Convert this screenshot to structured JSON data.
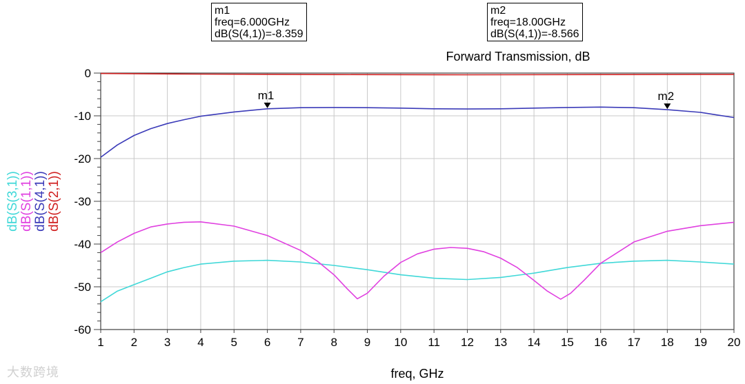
{
  "chart_data": {
    "type": "line",
    "title": "Forward Transmission, dB",
    "xlabel": "freq, GHz",
    "xlim": [
      1,
      20
    ],
    "ylim": [
      -60,
      0
    ],
    "xticks": [
      1,
      2,
      3,
      4,
      5,
      6,
      7,
      8,
      9,
      10,
      11,
      12,
      13,
      14,
      15,
      16,
      17,
      18,
      19,
      20
    ],
    "yticks": [
      0,
      -10,
      -20,
      -30,
      -40,
      -50,
      -60
    ],
    "grid": true,
    "series": [
      {
        "name": "dB(S(3,1))",
        "color": "#40d8d8",
        "x": [
          1,
          1.5,
          2,
          2.5,
          3,
          3.5,
          4,
          5,
          6,
          7,
          8,
          9,
          10,
          11,
          12,
          13,
          14,
          15,
          16,
          17,
          18,
          19,
          20
        ],
        "y": [
          -53.5,
          -51,
          -49.5,
          -48,
          -46.5,
          -45.5,
          -44.7,
          -44,
          -43.8,
          -44.2,
          -45,
          -46,
          -47.2,
          -48,
          -48.3,
          -47.8,
          -46.8,
          -45.5,
          -44.5,
          -44,
          -43.8,
          -44.2,
          -44.7
        ]
      },
      {
        "name": "dB(S(1,1))",
        "color": "#e040e0",
        "x": [
          1,
          1.5,
          2,
          2.5,
          3,
          3.5,
          4,
          5,
          6,
          7,
          7.5,
          8,
          8.4,
          8.7,
          9,
          9.5,
          10,
          10.5,
          11,
          11.5,
          12,
          12.5,
          13,
          13.5,
          14,
          14.4,
          14.8,
          15.1,
          15.5,
          16,
          17,
          18,
          19,
          20
        ],
        "y": [
          -42,
          -39.5,
          -37.5,
          -36,
          -35.3,
          -34.9,
          -34.8,
          -35.8,
          -38,
          -41.5,
          -44,
          -47.2,
          -50.5,
          -52.8,
          -51.5,
          -47.5,
          -44.3,
          -42.3,
          -41.2,
          -40.8,
          -41,
          -41.8,
          -43.3,
          -45.5,
          -48.5,
          -51,
          -52.9,
          -51.5,
          -48.5,
          -44.5,
          -39.5,
          -37,
          -35.7,
          -34.9
        ]
      },
      {
        "name": "dB(S(4,1))",
        "color": "#3a3ab8",
        "x": [
          1,
          1.5,
          2,
          2.5,
          3,
          3.5,
          4,
          5,
          6,
          7,
          8,
          9,
          10,
          11,
          12,
          13,
          14,
          15,
          16,
          17,
          18,
          19,
          19.5,
          20
        ],
        "y": [
          -19.7,
          -16.8,
          -14.6,
          -13,
          -11.8,
          -10.9,
          -10.1,
          -9.1,
          -8.36,
          -8.1,
          -8.05,
          -8.1,
          -8.2,
          -8.35,
          -8.4,
          -8.35,
          -8.2,
          -8.05,
          -7.95,
          -8.1,
          -8.57,
          -9.2,
          -9.8,
          -10.4
        ]
      },
      {
        "name": "dB(S(2,1))",
        "color": "#d02020",
        "x": [
          1,
          4,
          8,
          12,
          16,
          20
        ],
        "y": [
          -0.1,
          -0.25,
          -0.35,
          -0.4,
          -0.35,
          -0.3
        ]
      }
    ],
    "markers": [
      {
        "name": "m1",
        "freq": 6,
        "value": -8.359,
        "label_freq": "freq=6.000GHz",
        "label_value": "dB(S(4,1))=-8.359"
      },
      {
        "name": "m2",
        "freq": 18,
        "value": -8.566,
        "label_freq": "freq=18.00GHz",
        "label_value": "dB(S(4,1))=-8.566"
      }
    ]
  },
  "watermark": "大数跨境"
}
